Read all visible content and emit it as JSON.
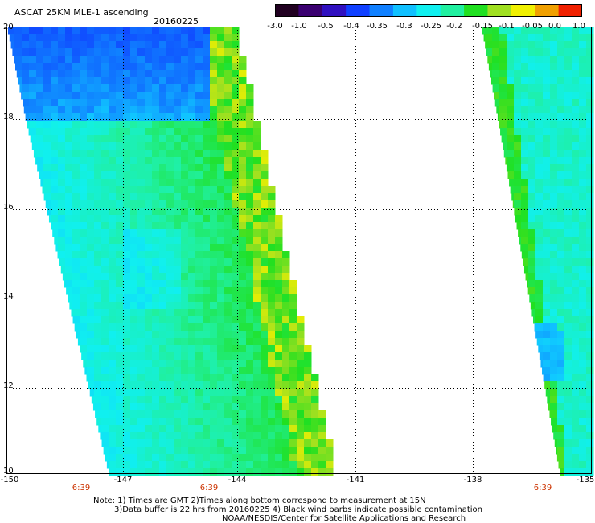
{
  "header": {
    "title": "ASCAT 25KM MLE-1 ascending",
    "date": "20160225"
  },
  "colorbar": {
    "labels": [
      "-3.0",
      "-1.0",
      "-0.5",
      "-0.4",
      "-0.35",
      "-0.3",
      "-0.25",
      "-0.2",
      "-0.15",
      "-0.1",
      "-0.05",
      "0.0",
      "1.0"
    ],
    "colors": [
      "#200020",
      "#3a0070",
      "#3010c0",
      "#1040ff",
      "#1080ff",
      "#10c0ff",
      "#10f0f0",
      "#20f0a0",
      "#20e020",
      "#a0e020",
      "#f0f000",
      "#f0a000",
      "#f02000"
    ]
  },
  "axes": {
    "y_ticks": [
      "20",
      "18",
      "16",
      "14",
      "12",
      "10"
    ],
    "x_ticks": [
      "-150",
      "-147",
      "-144",
      "-141",
      "-138",
      "-135"
    ],
    "time_labels": [
      "6:39",
      "6:39",
      "6:39"
    ]
  },
  "notes": {
    "line1": "Note: 1) Times are GMT 2)Times along bottom correspond to measurement at 15N",
    "line2": "3)Data buffer is 22 hrs from 20160225 4) Black wind barbs indicate possible contamination",
    "line3": "NOAA/NESDIS/Center for Satellite Applications and Research"
  },
  "map_data": {
    "lon_range": [
      -150,
      -135
    ],
    "lat_range": [
      10,
      20
    ],
    "swaths": [
      {
        "name": "left-swath"
      },
      {
        "name": "right-swath"
      }
    ]
  }
}
